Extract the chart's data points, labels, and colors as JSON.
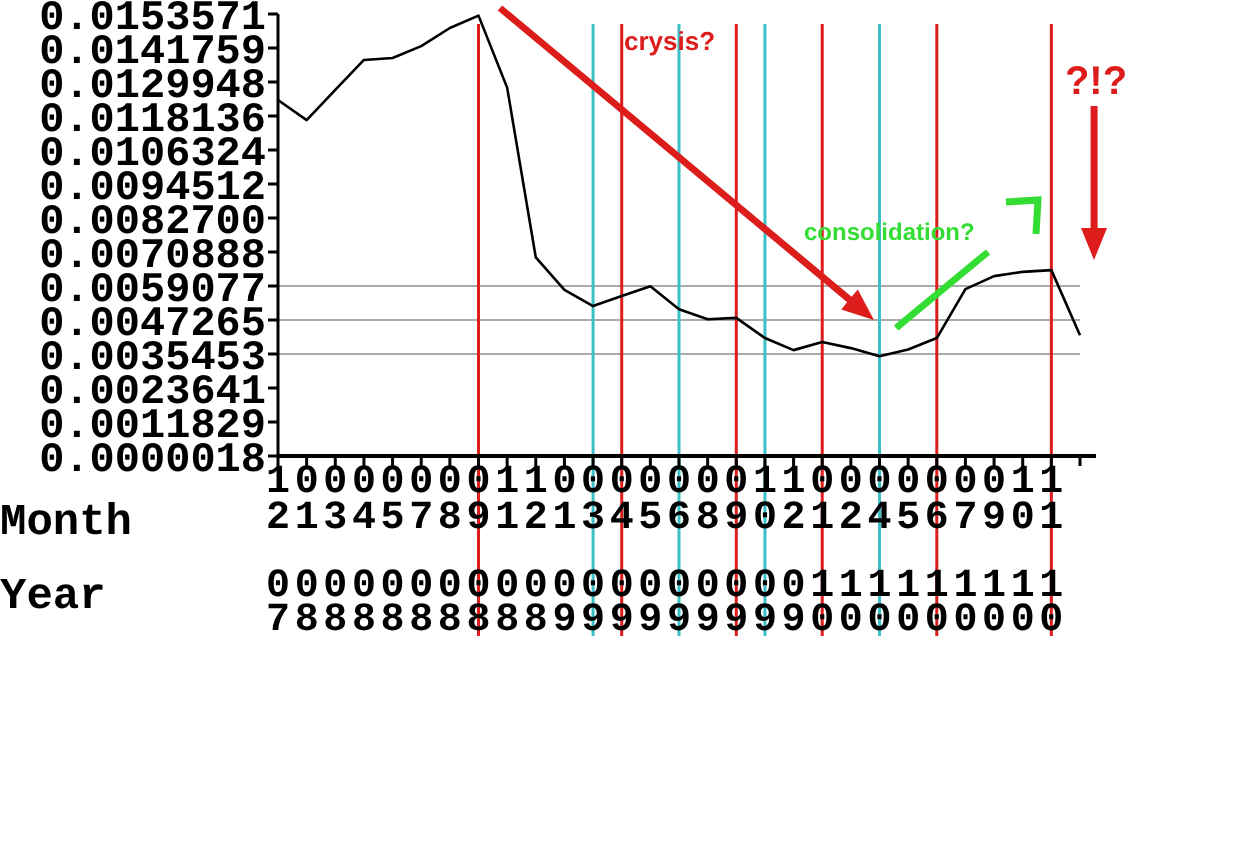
{
  "chart_data": {
    "type": "line",
    "xlabel": "Month",
    "categories": [
      "12 07",
      "01 08",
      "03 08",
      "04 08",
      "05 08",
      "07 08",
      "08 08",
      "09 08",
      "11 08",
      "12 08",
      "01 09",
      "03 09",
      "04 09",
      "05 09",
      "06 09",
      "08 09",
      "09 09",
      "10 09",
      "12 09",
      "01 10",
      "02 10",
      "04 10",
      "05 10",
      "06 10",
      "07 10",
      "09 10",
      "10 10",
      "11 10",
      null
    ],
    "series": [
      {
        "color": "#000000",
        "values": [
          0.01237,
          0.01167,
          0.01272,
          0.01376,
          0.01383,
          0.01424,
          0.01487,
          0.0153,
          0.0128,
          0.0069,
          0.00577,
          0.00521,
          0.00556,
          0.0059,
          0.0051,
          0.00475,
          0.0048,
          0.0041,
          0.00368,
          0.00396,
          0.00375,
          0.00347,
          0.0037,
          0.0041,
          0.0058,
          0.00625,
          0.0064,
          0.00646,
          0.0042
        ]
      }
    ],
    "ylim": [
      1.8e-06,
      0.0153571
    ],
    "yticks": [
      {
        "value": 1.8e-06,
        "label": "0.0000018"
      },
      {
        "value": 0.0011829,
        "label": "0.0011829"
      },
      {
        "value": 0.0023641,
        "label": "0.0023641"
      },
      {
        "value": 0.0035453,
        "label": "0.0035453"
      },
      {
        "value": 0.0047265,
        "label": "0.0047265"
      },
      {
        "value": 0.0059077,
        "label": "0.0059077"
      },
      {
        "value": 0.0070888,
        "label": "0.0070888"
      },
      {
        "value": 0.00827,
        "label": "0.0082700"
      },
      {
        "value": 0.0094512,
        "label": "0.0094512"
      },
      {
        "value": 0.0106324,
        "label": "0.0106324"
      },
      {
        "value": 0.0118136,
        "label": "0.0118136"
      },
      {
        "value": 0.0129948,
        "label": "0.0129948"
      },
      {
        "value": 0.0141759,
        "label": "0.0141759"
      },
      {
        "value": 0.0153571,
        "label": "0.0153571"
      }
    ],
    "ref_lines": [
      {
        "axis": "y",
        "value": 0.0059077,
        "color": "#aaaaaa"
      },
      {
        "axis": "y",
        "value": 0.0047265,
        "color": "#aaaaaa"
      },
      {
        "axis": "y",
        "value": 0.0035453,
        "color": "#aaaaaa"
      },
      {
        "axis": "x",
        "value": "09 08",
        "color": "#dd1c1c"
      },
      {
        "axis": "x",
        "value": "04 09",
        "color": "#dd1c1c"
      },
      {
        "axis": "x",
        "value": "09 09",
        "color": "#dd1c1c"
      },
      {
        "axis": "x",
        "value": "01 10",
        "color": "#dd1c1c"
      },
      {
        "axis": "x",
        "value": "06 10",
        "color": "#dd1c1c"
      },
      {
        "axis": "x",
        "value": "11 10",
        "color": "#dd1c1c"
      },
      {
        "axis": "x",
        "value": "03 09",
        "color": "#3cc0c8"
      },
      {
        "axis": "x",
        "value": "06 09",
        "color": "#3cc0c8"
      },
      {
        "axis": "x",
        "value": "10 09",
        "color": "#3cc0c8"
      },
      {
        "axis": "x",
        "value": "04 10",
        "color": "#3cc0c8"
      }
    ],
    "annotations": [
      "Year",
      "crysis?",
      "consolidation?",
      "?!?"
    ],
    "marker": "none",
    "grid": false
  }
}
